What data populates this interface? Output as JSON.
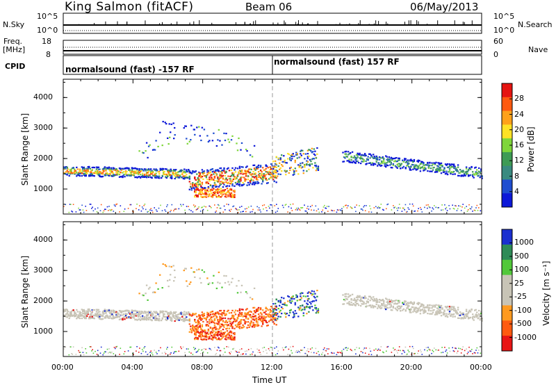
{
  "header": {
    "station": "King Salmon (fitACF)",
    "beam": "Beam 06",
    "date": "06/May/2013"
  },
  "left_labels": {
    "nsky": "N.Sky",
    "freq": "Freq.",
    "freq_unit": "[MHz]",
    "cpid": "CPID"
  },
  "right_labels": {
    "nsearch": "N.Search",
    "nave": "Nave"
  },
  "cpid_segments": [
    {
      "label": "normalsound (fast) -157 RF",
      "start": "00:00",
      "end": "12:00"
    },
    {
      "label": "normalsound (fast) 157 RF",
      "start": "12:00",
      "end": "24:00"
    }
  ],
  "colors": {
    "power": [
      "#0d18d8",
      "#1f4ed0",
      "#3a8a80",
      "#3e9b55",
      "#7fd63a",
      "#ffe226",
      "#ffa11a",
      "#ff5a10",
      "#e51411"
    ],
    "velocity": [
      "#e81515",
      "#ff5a10",
      "#ff9a20",
      "#c8c4b6",
      "#c8c4b6",
      "#52c83a",
      "#2e8b57",
      "#1a2fd0"
    ],
    "ground": "#c8c4b6"
  },
  "chart_data": [
    {
      "type": "line",
      "title": "N.Sky / N.Search",
      "left_ticks": [
        "10^5",
        "10^0"
      ],
      "right_ticks": [
        "10^5",
        "10^0"
      ],
      "series": [
        {
          "name": "N.Sky"
        },
        {
          "name": "N.Search"
        }
      ]
    },
    {
      "type": "line",
      "title": "Freq. / Nave",
      "left_ticks": [
        18,
        8
      ],
      "right_ticks": [
        60,
        0
      ],
      "ylim_left": [
        8,
        18
      ],
      "ylim_right": [
        0,
        60
      ],
      "series": [
        {
          "name": "Freq. [MHz]",
          "value": 10.5
        },
        {
          "name": "Nave",
          "value": 30
        }
      ]
    },
    {
      "type": "heatmap",
      "ylabel": "Slant Range [km]",
      "yticks": [
        1000,
        2000,
        3000,
        4000
      ],
      "ylim": [
        180,
        4600
      ],
      "xlim": [
        0,
        24
      ],
      "colorbar": {
        "label": "Power [dB]",
        "ticks": [
          28,
          24,
          20,
          16,
          12,
          8,
          4
        ]
      }
    },
    {
      "type": "heatmap",
      "ylabel": "Slant Range [km]",
      "yticks": [
        1000,
        2000,
        3000,
        4000
      ],
      "ylim": [
        180,
        4600
      ],
      "xlim": [
        0,
        24
      ],
      "colorbar": {
        "label": "Velocity [m s⁻¹]",
        "ticks": [
          1000,
          500,
          100,
          25,
          -25,
          -100,
          -500,
          -1000
        ]
      }
    }
  ],
  "time_axis": {
    "ticks": [
      "00:00",
      "04:00",
      "08:00",
      "12:00",
      "16:00",
      "20:00",
      "00:00"
    ],
    "label": "Time UT"
  }
}
